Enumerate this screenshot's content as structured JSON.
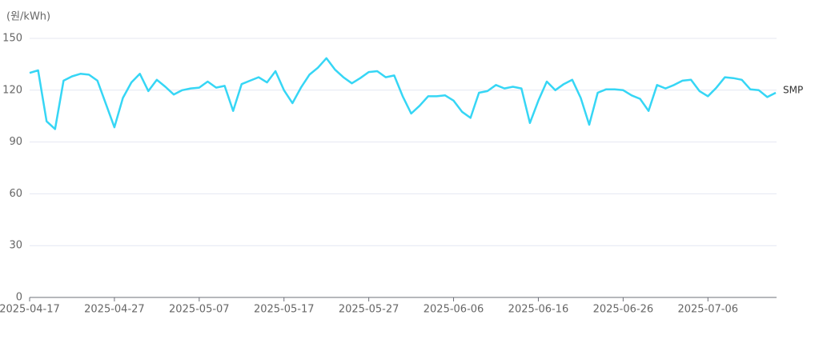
{
  "chart_data": {
    "type": "line",
    "y_label": "(원/kWh)",
    "x": [
      "2025-04-17",
      "2025-04-18",
      "2025-04-19",
      "2025-04-20",
      "2025-04-21",
      "2025-04-22",
      "2025-04-23",
      "2025-04-24",
      "2025-04-25",
      "2025-04-26",
      "2025-04-27",
      "2025-04-28",
      "2025-04-29",
      "2025-04-30",
      "2025-05-01",
      "2025-05-02",
      "2025-05-03",
      "2025-05-04",
      "2025-05-05",
      "2025-05-06",
      "2025-05-07",
      "2025-05-08",
      "2025-05-09",
      "2025-05-10",
      "2025-05-11",
      "2025-05-12",
      "2025-05-13",
      "2025-05-14",
      "2025-05-15",
      "2025-05-16",
      "2025-05-17",
      "2025-05-18",
      "2025-05-19",
      "2025-05-20",
      "2025-05-21",
      "2025-05-22",
      "2025-05-23",
      "2025-05-24",
      "2025-05-25",
      "2025-05-26",
      "2025-05-27",
      "2025-05-28",
      "2025-05-29",
      "2025-05-30",
      "2025-05-31",
      "2025-06-01",
      "2025-06-02",
      "2025-06-03",
      "2025-06-04",
      "2025-06-05",
      "2025-06-06",
      "2025-06-07",
      "2025-06-08",
      "2025-06-09",
      "2025-06-10",
      "2025-06-11",
      "2025-06-12",
      "2025-06-13",
      "2025-06-14",
      "2025-06-15",
      "2025-06-16",
      "2025-06-17",
      "2025-06-18",
      "2025-06-19",
      "2025-06-20",
      "2025-06-21",
      "2025-06-22",
      "2025-06-23",
      "2025-06-24",
      "2025-06-25",
      "2025-06-26",
      "2025-06-27",
      "2025-06-28",
      "2025-06-29",
      "2025-06-30",
      "2025-07-01",
      "2025-07-02",
      "2025-07-03",
      "2025-07-04",
      "2025-07-05",
      "2025-07-06",
      "2025-07-07",
      "2025-07-08",
      "2025-07-09",
      "2025-07-10",
      "2025-07-11",
      "2025-07-12",
      "2025-07-13",
      "2025-07-14"
    ],
    "series": [
      {
        "name": "SMP",
        "color": "#36d6f5",
        "values": [
          130,
          131.5,
          102,
          97.5,
          125.5,
          128,
          129.5,
          129,
          125.5,
          112,
          98.5,
          115.5,
          124.5,
          129.5,
          119.5,
          126,
          122,
          117.5,
          120,
          121,
          121.5,
          125,
          121.5,
          122.5,
          108,
          123.5,
          125.5,
          127.5,
          124.5,
          131,
          120,
          112.5,
          121.5,
          129,
          133,
          138.5,
          132,
          127.5,
          124,
          127,
          130.5,
          131,
          127.5,
          128.5,
          116.5,
          106.5,
          111,
          116.5,
          116.5,
          117,
          114,
          107.5,
          104,
          118.5,
          119.5,
          123,
          121,
          122,
          121,
          101,
          114,
          125,
          120,
          123.5,
          126,
          115.5,
          100,
          118.5,
          120.5,
          120.5,
          120,
          117,
          115,
          108,
          123,
          121,
          123,
          125.5,
          126,
          119.5,
          116.5,
          121.5,
          127.5,
          127,
          126,
          120.5,
          120,
          116,
          118.5
        ]
      }
    ],
    "xticks": [
      "2025-04-17",
      "2025-04-27",
      "2025-05-07",
      "2025-05-17",
      "2025-05-27",
      "2025-06-06",
      "2025-06-16",
      "2025-06-26",
      "2025-07-06"
    ],
    "ylim": [
      0,
      150
    ],
    "yticks": [
      0,
      30,
      60,
      90,
      120,
      150
    ],
    "grid": true
  }
}
